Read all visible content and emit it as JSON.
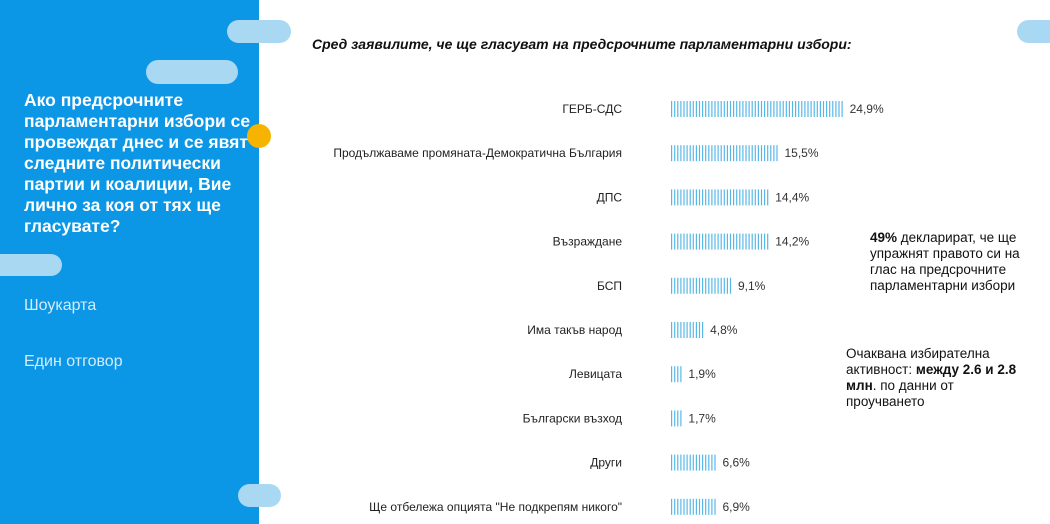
{
  "sidebar": {
    "question": "Ако предсрочните парламентарни избори се провеждат днес и се явят следните политически партии и коалиции, Вие лично за коя от тях ще гласувате?",
    "card_label": "Шоукарта",
    "answer_label": "Един отговор"
  },
  "chart_title": "Сред заявилите, че ще гласуват на предсрочните парламентарни избори:",
  "notes": {
    "turnout_bold": "49%",
    "turnout_text": " декларират, че ще упражнят правото си на глас на предсрочните парламентарни избори",
    "activity_text": "Очаквана избирателна активност: ",
    "activity_bold": "между 2.6 и 2.8 млн",
    "activity_tail": ". по данни от проучването"
  },
  "colors": {
    "sidebar": "#0b96e6",
    "bar": "#57b8e8",
    "accent": "#f6b400"
  },
  "chart_data": {
    "type": "bar",
    "orientation": "horizontal",
    "title": "Сред заявилите, че ще гласуват на предсрочните парламентарни избори:",
    "categories": [
      "ГЕРБ-СДС",
      "Продължаваме промяната-Демократична България",
      "ДПС",
      "Възраждане",
      "БСП",
      "Има такъв народ",
      "Левицата",
      "Български възход",
      "Други",
      "Ще отбележа опцията \"Не подкрепям никого\""
    ],
    "values": [
      24.9,
      15.5,
      14.4,
      14.2,
      9.1,
      4.8,
      1.9,
      1.7,
      6.6,
      6.9
    ],
    "value_labels": [
      "24,9%",
      "15,5%",
      "14,4%",
      "14,2%",
      "9,1%",
      "4,8%",
      "1,9%",
      "1,7%",
      "6,6%",
      "6,9%"
    ],
    "grid": false
  }
}
